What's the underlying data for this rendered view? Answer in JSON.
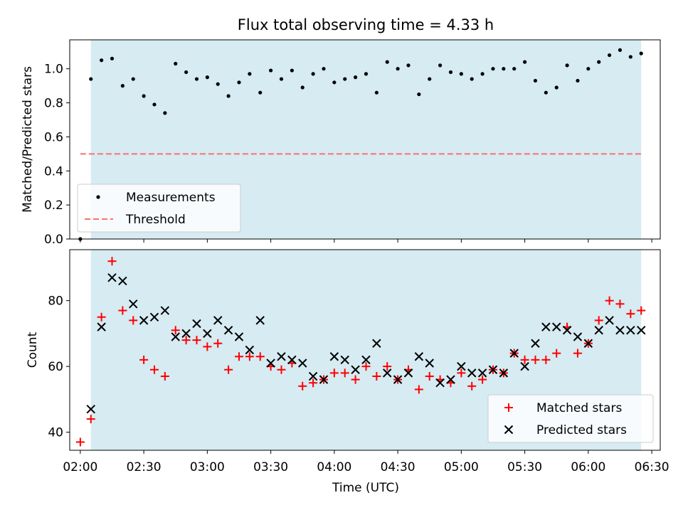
{
  "title": "Flux total observing time = 4.33 h",
  "xlabel": "Time (UTC)",
  "x_ticks": [
    "02:00",
    "02:30",
    "03:00",
    "03:30",
    "04:00",
    "04:30",
    "05:00",
    "05:30",
    "06:00",
    "06:30"
  ],
  "shade_color": "#add8e6",
  "chart_data": [
    {
      "type": "scatter",
      "ylabel": "Matched/Predicted stars",
      "x_range": [
        "01:55",
        "06:34"
      ],
      "ylim": [
        0,
        1.17
      ],
      "y_ticks": [
        "0.0",
        "0.2",
        "0.4",
        "0.6",
        "0.8",
        "1.0"
      ],
      "shaded_interval": [
        "02:05",
        "06:25"
      ],
      "threshold": {
        "y": 0.5,
        "x": [
          "02:00",
          "06:25"
        ],
        "color": "#ff6e6e"
      },
      "legend_position": "lower left",
      "legend": {
        "measurements": "Measurements",
        "threshold": "Threshold"
      },
      "series": [
        {
          "name": "Measurements",
          "color": "#000000",
          "x": [
            "02:00",
            "02:05",
            "02:10",
            "02:15",
            "02:20",
            "02:25",
            "02:30",
            "02:35",
            "02:40",
            "02:45",
            "02:50",
            "02:55",
            "03:00",
            "03:05",
            "03:10",
            "03:15",
            "03:20",
            "03:25",
            "03:30",
            "03:35",
            "03:40",
            "03:45",
            "03:50",
            "03:55",
            "04:00",
            "04:05",
            "04:10",
            "04:15",
            "04:20",
            "04:25",
            "04:30",
            "04:35",
            "04:40",
            "04:45",
            "04:50",
            "04:55",
            "05:00",
            "05:05",
            "05:10",
            "05:15",
            "05:20",
            "05:25",
            "05:30",
            "05:35",
            "05:40",
            "05:45",
            "05:50",
            "05:55",
            "06:00",
            "06:05",
            "06:10",
            "06:15",
            "06:20",
            "06:25"
          ],
          "y": [
            0.0,
            0.94,
            1.05,
            1.06,
            0.9,
            0.94,
            0.84,
            0.79,
            0.74,
            1.03,
            0.98,
            0.94,
            0.95,
            0.91,
            0.84,
            0.92,
            0.97,
            0.86,
            0.99,
            0.94,
            0.99,
            0.89,
            0.97,
            1.0,
            0.92,
            0.94,
            0.95,
            0.97,
            0.86,
            1.04,
            1.0,
            1.02,
            0.85,
            0.94,
            1.02,
            0.98,
            0.97,
            0.94,
            0.97,
            1.0,
            1.0,
            1.0,
            1.04,
            0.93,
            0.86,
            0.89,
            1.02,
            0.93,
            1.0,
            1.04,
            1.08,
            1.11,
            1.07,
            1.09
          ]
        }
      ]
    },
    {
      "type": "scatter",
      "ylabel": "Count",
      "x_range": [
        "01:55",
        "06:34"
      ],
      "ylim": [
        34.5,
        95.5
      ],
      "y_ticks": [
        "40",
        "60",
        "80"
      ],
      "shaded_interval": [
        "02:05",
        "06:25"
      ],
      "legend_position": "lower right",
      "series": [
        {
          "name": "Matched stars",
          "color": "#ff0000",
          "marker": "+",
          "x": [
            "02:00",
            "02:05",
            "02:10",
            "02:15",
            "02:20",
            "02:25",
            "02:30",
            "02:35",
            "02:40",
            "02:45",
            "02:50",
            "02:55",
            "03:00",
            "03:05",
            "03:10",
            "03:15",
            "03:20",
            "03:25",
            "03:30",
            "03:35",
            "03:40",
            "03:45",
            "03:50",
            "03:55",
            "04:00",
            "04:05",
            "04:10",
            "04:15",
            "04:20",
            "04:25",
            "04:30",
            "04:35",
            "04:40",
            "04:45",
            "04:50",
            "04:55",
            "05:00",
            "05:05",
            "05:10",
            "05:15",
            "05:20",
            "05:25",
            "05:30",
            "05:35",
            "05:40",
            "05:45",
            "05:50",
            "05:55",
            "06:00",
            "06:05",
            "06:10",
            "06:15",
            "06:20",
            "06:25"
          ],
          "y": [
            37,
            44,
            75,
            92,
            77,
            74,
            62,
            59,
            57,
            71,
            68,
            68,
            66,
            67,
            59,
            63,
            63,
            63,
            60,
            59,
            61,
            54,
            55,
            56,
            58,
            58,
            56,
            60,
            57,
            60,
            56,
            59,
            53,
            57,
            56,
            55,
            58,
            54,
            56,
            59,
            58,
            64,
            62,
            62,
            62,
            64,
            72,
            64,
            67,
            74,
            80,
            79,
            76,
            77
          ]
        },
        {
          "name": "Predicted stars",
          "color": "#000000",
          "marker": "x",
          "x": [
            "02:05",
            "02:10",
            "02:15",
            "02:20",
            "02:25",
            "02:30",
            "02:35",
            "02:40",
            "02:45",
            "02:50",
            "02:55",
            "03:00",
            "03:05",
            "03:10",
            "03:15",
            "03:20",
            "03:25",
            "03:30",
            "03:35",
            "03:40",
            "03:45",
            "03:50",
            "03:55",
            "04:00",
            "04:05",
            "04:10",
            "04:15",
            "04:20",
            "04:25",
            "04:30",
            "04:35",
            "04:40",
            "04:45",
            "04:50",
            "04:55",
            "05:00",
            "05:05",
            "05:10",
            "05:15",
            "05:20",
            "05:25",
            "05:30",
            "05:35",
            "05:40",
            "05:45",
            "05:50",
            "05:55",
            "06:00",
            "06:05",
            "06:10",
            "06:15",
            "06:20",
            "06:25"
          ],
          "y": [
            47,
            72,
            87,
            86,
            79,
            74,
            75,
            77,
            69,
            70,
            73,
            70,
            74,
            71,
            69,
            65,
            74,
            61,
            63,
            62,
            61,
            57,
            56,
            63,
            62,
            59,
            62,
            67,
            58,
            56,
            58,
            63,
            61,
            55,
            56,
            60,
            58,
            58,
            59,
            58,
            64,
            60,
            67,
            72,
            72,
            71,
            69,
            67,
            71,
            74,
            71,
            71,
            71
          ]
        }
      ]
    }
  ]
}
